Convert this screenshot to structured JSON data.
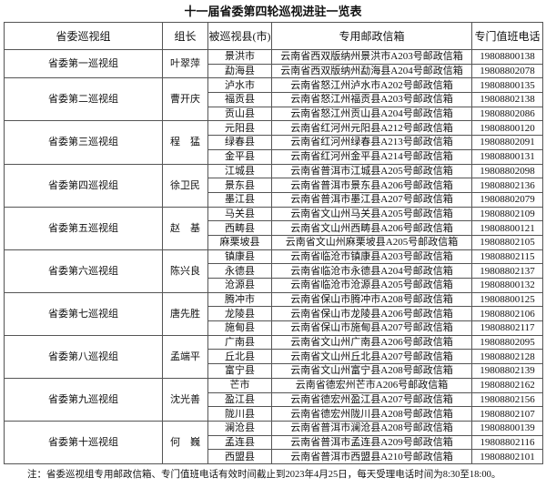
{
  "title": "十一届省委第四轮巡视进驻一览表",
  "table": {
    "headers": [
      "省委巡视组",
      "组长",
      "被巡视县(市)",
      "专用邮政信箱",
      "专门值班电话"
    ],
    "groups": [
      {
        "group": "省委第一巡视组",
        "leader": "叶翠萍",
        "rows": [
          [
            "景洪市",
            "云南省西双版纳州景洪市A203号邮政信箱",
            "19808800138"
          ],
          [
            "勐海县",
            "云南省西双版纳州勐海县A204号邮政信箱",
            "19808802078"
          ]
        ]
      },
      {
        "group": "省委第二巡视组",
        "leader": "曹开庆",
        "rows": [
          [
            "泸水市",
            "云南省怒江州泸水市A202号邮政信箱",
            "19808800135"
          ],
          [
            "福贡县",
            "云南省怒江州福贡县A203号邮政信箱",
            "19808802138"
          ],
          [
            "贡山县",
            "云南省怒江州贡山县A204号邮政信箱",
            "19808802086"
          ]
        ]
      },
      {
        "group": "省委第三巡视组",
        "leader": "程　猛",
        "rows": [
          [
            "元阳县",
            "云南省红河州元阳县A212号邮政信箱",
            "19808800120"
          ],
          [
            "绿春县",
            "云南省红河州绿春县A213号邮政信箱",
            "19808802091"
          ],
          [
            "金平县",
            "云南省红河州金平县A214号邮政信箱",
            "19808800131"
          ]
        ]
      },
      {
        "group": "省委第四巡视组",
        "leader": "徐卫民",
        "rows": [
          [
            "江城县",
            "云南省普洱市江城县A205号邮政信箱",
            "19808802098"
          ],
          [
            "景东县",
            "云南省普洱市景东县A206号邮政信箱",
            "19808802136"
          ],
          [
            "墨江县",
            "云南省普洱市墨江县A207号邮政信箱",
            "19808802079"
          ]
        ]
      },
      {
        "group": "省委第五巡视组",
        "leader": "赵　基",
        "rows": [
          [
            "马关县",
            "云南省文山州马关县A205号邮政信箱",
            "19808802109"
          ],
          [
            "西畴县",
            "云南省文山州西畴县A206号邮政信箱",
            "19808800121"
          ],
          [
            "麻栗坡县",
            "云南省文山州麻栗坡县A205号邮政信箱",
            "19808802105"
          ]
        ]
      },
      {
        "group": "省委第六巡视组",
        "leader": "陈兴良",
        "rows": [
          [
            "镇康县",
            "云南省临沧市镇康县A203号邮政信箱",
            "19808802115"
          ],
          [
            "永德县",
            "云南省临沧市永德县A204号邮政信箱",
            "19808802137"
          ],
          [
            "沧源县",
            "云南省临沧市沧源县A205号邮政信箱",
            "19808800132"
          ]
        ]
      },
      {
        "group": "省委第七巡视组",
        "leader": "唐先胜",
        "rows": [
          [
            "腾冲市",
            "云南省保山市腾冲市A208号邮政信箱",
            "19808800125"
          ],
          [
            "龙陵县",
            "云南省保山市龙陵县A206号邮政信箱",
            "19808802106"
          ],
          [
            "施甸县",
            "云南省保山市施甸县A207号邮政信箱",
            "19808802117"
          ]
        ]
      },
      {
        "group": "省委第八巡视组",
        "leader": "孟端平",
        "rows": [
          [
            "广南县",
            "云南省文山州广南县A206号邮政信箱",
            "19808802095"
          ],
          [
            "丘北县",
            "云南省文山州丘北县A207号邮政信箱",
            "19808802128"
          ],
          [
            "富宁县",
            "云南省文山州富宁县A208号邮政信箱",
            "19808802139"
          ]
        ]
      },
      {
        "group": "省委第九巡视组",
        "leader": "沈光善",
        "rows": [
          [
            "芒市",
            "云南省德宏州芒市A206号邮政信箱",
            "19808802162"
          ],
          [
            "盈江县",
            "云南省德宏州盈江县A207号邮政信箱",
            "19808802156"
          ],
          [
            "陇川县",
            "云南省德宏州陇川县A208号邮政信箱",
            "19808802107"
          ]
        ]
      },
      {
        "group": "省委第十巡视组",
        "leader": "何　巍",
        "rows": [
          [
            "澜沧县",
            "云南省普洱市澜沧县A208号邮政信箱",
            "19808800139"
          ],
          [
            "孟连县",
            "云南省普洱市孟连县A209号邮政信箱",
            "19808802116"
          ],
          [
            "西盟县",
            "云南省普洱市西盟县A210号邮政信箱",
            "19808802101"
          ]
        ]
      }
    ]
  },
  "note": "注：省委巡视组专用邮政信箱、专门值班电话有效时间截止到2023年4月25日，每天受理电话时间为8:30至18:00。"
}
